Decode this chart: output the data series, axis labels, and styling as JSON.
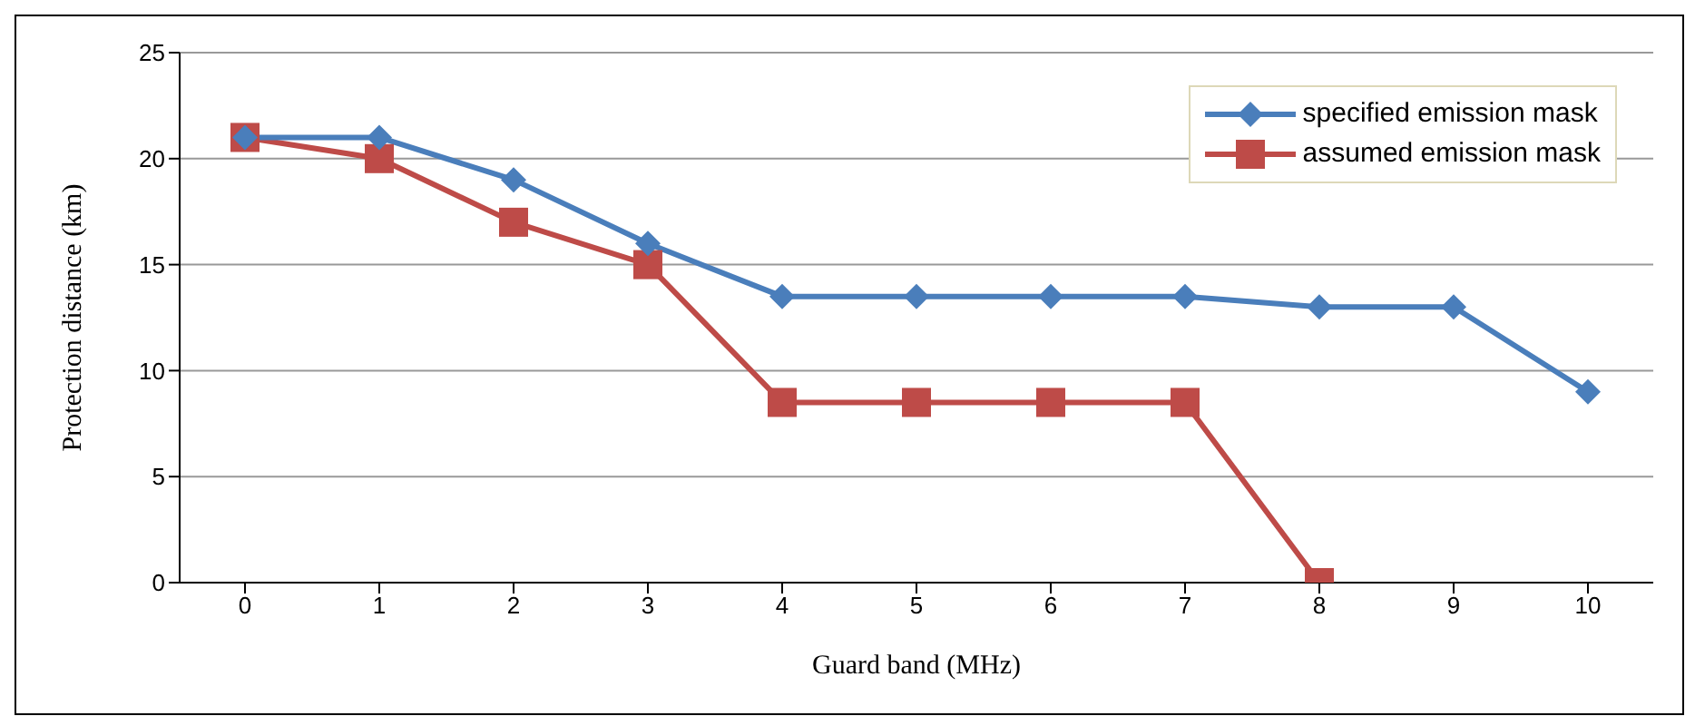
{
  "chart_data": {
    "type": "line",
    "xlabel": "Guard band (MHz)",
    "ylabel": "Protection distance (km)",
    "categories": [
      "0",
      "1",
      "2",
      "3",
      "4",
      "5",
      "6",
      "7",
      "8",
      "9",
      "10"
    ],
    "series": [
      {
        "name": "specified emission mask",
        "color": "#4a7ebb",
        "marker": "diamond",
        "values": [
          21,
          21,
          19,
          16,
          13.5,
          13.5,
          13.5,
          13.5,
          13,
          13,
          9
        ]
      },
      {
        "name": "assumed emission mask",
        "color": "#be4b48",
        "marker": "square",
        "values": [
          21,
          20,
          17,
          15,
          8.5,
          8.5,
          8.5,
          8.5,
          0,
          null,
          null
        ]
      }
    ],
    "ylim": [
      0,
      25
    ],
    "yticks": [
      0,
      5,
      10,
      15,
      20,
      25
    ],
    "grid": "y",
    "legend": "top right",
    "line_style": "solid"
  }
}
